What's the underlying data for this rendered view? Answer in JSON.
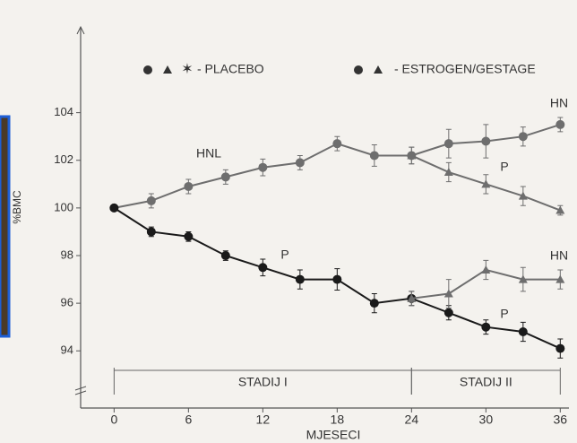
{
  "chart_data": {
    "type": "line",
    "y_label": "%BMC",
    "x_label": "MJESECI",
    "legend": [
      "- PLACEBO",
      "- ESTROGEN/GESTAGE"
    ],
    "annotations": [
      "HNL",
      "P",
      "HN",
      "P",
      "HN",
      "P"
    ],
    "stages": [
      {
        "label": "STADIJ I",
        "start": 0,
        "end": 24
      },
      {
        "label": "STADIJ II",
        "start": 24,
        "end": 36
      }
    ],
    "x": [
      0,
      3,
      6,
      9,
      12,
      15,
      18,
      21,
      24,
      27,
      30,
      33,
      36
    ],
    "xlim": [
      -2.7,
      36.7
    ],
    "xticks": [
      0,
      6,
      12,
      18,
      24,
      30,
      36
    ],
    "ylim": [
      91.6,
      107.6
    ],
    "yticks": [
      94,
      96,
      98,
      100,
      102,
      104
    ],
    "series": [
      {
        "color": "#6e6e6e",
        "marker": "circle",
        "values": [
          100,
          100.3,
          100.9,
          101.3,
          101.7,
          101.9,
          102.7,
          102.2,
          102.2,
          102.7,
          102.8,
          103,
          103.5
        ],
        "errors": [
          0.1,
          0.3,
          0.3,
          0.3,
          0.35,
          0.3,
          0.3,
          0.45,
          0.35,
          0.6,
          0.7,
          0.4,
          0.3
        ]
      },
      {
        "color": "#6e6e6e",
        "marker": "triangle",
        "values": [
          null,
          null,
          null,
          null,
          null,
          null,
          null,
          null,
          102.2,
          101.5,
          101,
          100.5,
          99.9
        ],
        "errors": [
          null,
          null,
          null,
          null,
          null,
          null,
          null,
          null,
          0.35,
          0.4,
          0.4,
          0.4,
          0.2
        ]
      },
      {
        "color": "#1a1a1a",
        "marker": "circle",
        "values": [
          100,
          99,
          98.8,
          98,
          97.5,
          97,
          97,
          96,
          96.2,
          95.6,
          95,
          94.8,
          94.1
        ],
        "errors": [
          0.1,
          0.2,
          0.2,
          0.2,
          0.35,
          0.4,
          0.45,
          0.4,
          0.3,
          0.3,
          0.3,
          0.4,
          0.4
        ]
      },
      {
        "color": "#6e6e6e",
        "marker": "triangle",
        "values": [
          null,
          null,
          null,
          null,
          null,
          null,
          null,
          null,
          96.2,
          96.4,
          97.4,
          97,
          97
        ],
        "errors": [
          null,
          null,
          null,
          null,
          null,
          null,
          null,
          null,
          0.3,
          0.6,
          0.4,
          0.5,
          0.4
        ]
      }
    ]
  }
}
